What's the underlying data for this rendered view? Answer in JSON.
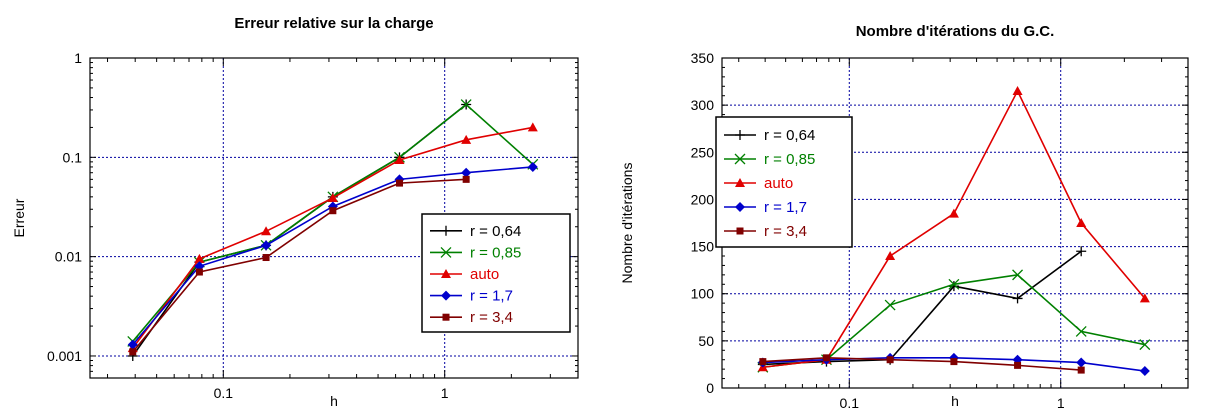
{
  "chart_data": [
    {
      "type": "line",
      "title": "Erreur relative sur la charge",
      "xlabel": "h",
      "ylabel": "Erreur",
      "xscale": "log",
      "yscale": "log",
      "xlim": [
        0.025,
        4
      ],
      "ylim": [
        0.0006,
        1
      ],
      "xticks": [
        {
          "v": 0.1,
          "label": "0.1"
        },
        {
          "v": 1,
          "label": "1"
        }
      ],
      "yticks": [
        {
          "v": 0.001,
          "label": "0.001"
        },
        {
          "v": 0.01,
          "label": "0.01"
        },
        {
          "v": 0.1,
          "label": "0.1"
        },
        {
          "v": 1,
          "label": "1"
        }
      ],
      "grid": true,
      "legend_position": "bottom-right",
      "series": [
        {
          "name": "r = 0,64",
          "color": "#000000",
          "marker": "plus",
          "x": [
            0.039,
            0.078,
            0.156,
            0.3125,
            0.625,
            1.25
          ],
          "y": [
            0.001,
            0.0088,
            0.013,
            0.04,
            0.1,
            0.34
          ]
        },
        {
          "name": "r = 0,85",
          "color": "#008000",
          "marker": "x",
          "x": [
            0.039,
            0.078,
            0.156,
            0.3125,
            0.625,
            1.25,
            2.5
          ],
          "y": [
            0.0014,
            0.0088,
            0.013,
            0.04,
            0.1,
            0.34,
            0.085
          ]
        },
        {
          "name": "auto",
          "color": "#e00000",
          "marker": "triangle",
          "x": [
            0.039,
            0.078,
            0.156,
            0.3125,
            0.625,
            1.25,
            2.5
          ],
          "y": [
            0.0012,
            0.0095,
            0.018,
            0.039,
            0.094,
            0.15,
            0.2
          ]
        },
        {
          "name": "r = 1,7",
          "color": "#0000cc",
          "marker": "diamond",
          "x": [
            0.039,
            0.078,
            0.156,
            0.3125,
            0.625,
            1.25,
            2.5
          ],
          "y": [
            0.0013,
            0.008,
            0.013,
            0.032,
            0.06,
            0.07,
            0.08
          ]
        },
        {
          "name": "r = 3,4",
          "color": "#800000",
          "marker": "square",
          "x": [
            0.039,
            0.078,
            0.156,
            0.3125,
            0.625,
            1.25
          ],
          "y": [
            0.0011,
            0.007,
            0.0098,
            0.029,
            0.055,
            0.06
          ]
        }
      ]
    },
    {
      "type": "line",
      "title": "Nombre d'itérations du G.C.",
      "xlabel": "h",
      "ylabel": "Nombre d'itérations",
      "xscale": "log",
      "yscale": "linear",
      "xlim": [
        0.025,
        4
      ],
      "ylim": [
        0,
        350
      ],
      "xticks": [
        {
          "v": 0.1,
          "label": "0.1"
        },
        {
          "v": 1,
          "label": "1"
        }
      ],
      "yticks": [
        {
          "v": 0,
          "label": "0"
        },
        {
          "v": 50,
          "label": "50"
        },
        {
          "v": 100,
          "label": "100"
        },
        {
          "v": 150,
          "label": "150"
        },
        {
          "v": 200,
          "label": "200"
        },
        {
          "v": 250,
          "label": "250"
        },
        {
          "v": 300,
          "label": "300"
        },
        {
          "v": 350,
          "label": "350"
        }
      ],
      "grid": true,
      "legend_position": "top-left",
      "series": [
        {
          "name": "r = 0,64",
          "color": "#000000",
          "marker": "plus",
          "x": [
            0.039,
            0.078,
            0.156,
            0.3125,
            0.625,
            1.25
          ],
          "y": [
            25,
            28,
            30,
            108,
            95,
            145
          ]
        },
        {
          "name": "r = 0,85",
          "color": "#008000",
          "marker": "x",
          "x": [
            0.039,
            0.078,
            0.156,
            0.3125,
            0.625,
            1.25,
            2.5
          ],
          "y": [
            22,
            30,
            88,
            110,
            120,
            60,
            46
          ]
        },
        {
          "name": "auto",
          "color": "#e00000",
          "marker": "triangle",
          "x": [
            0.039,
            0.078,
            0.156,
            0.3125,
            0.625,
            1.25,
            2.5
          ],
          "y": [
            22,
            30,
            140,
            185,
            315,
            175,
            95
          ]
        },
        {
          "name": "r = 1,7",
          "color": "#0000cc",
          "marker": "diamond",
          "x": [
            0.039,
            0.078,
            0.156,
            0.3125,
            0.625,
            1.25,
            2.5
          ],
          "y": [
            27,
            30,
            32,
            32,
            30,
            27,
            18
          ]
        },
        {
          "name": "r = 3,4",
          "color": "#800000",
          "marker": "square",
          "x": [
            0.039,
            0.078,
            0.156,
            0.3125,
            0.625,
            1.25
          ],
          "y": [
            28,
            32,
            30,
            28,
            24,
            19
          ]
        }
      ]
    }
  ]
}
